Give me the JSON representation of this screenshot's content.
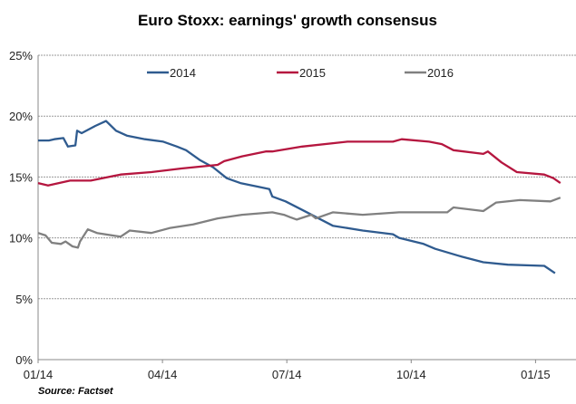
{
  "chart_data": {
    "type": "line",
    "title": "Euro Stoxx: earnings' growth consensus",
    "source": "Source: Factset",
    "xlabel": "",
    "ylabel": "",
    "x_unit": "months since 01/14",
    "xlim": [
      0,
      12.6
    ],
    "ylim": [
      0,
      25
    ],
    "yticks": [
      0,
      5,
      10,
      15,
      20,
      25
    ],
    "ytick_labels": [
      "0%",
      "5%",
      "10%",
      "15%",
      "20%",
      "25%"
    ],
    "xticks": [
      0,
      3,
      6,
      9,
      12
    ],
    "xtick_labels": [
      "01/14",
      "04/14",
      "07/14",
      "10/14",
      "01/15"
    ],
    "grid": "horizontal dashed",
    "legend_position": "top",
    "series": [
      {
        "name": "2014",
        "color": "#2f5b8f",
        "points": [
          [
            0,
            18.0
          ],
          [
            0.26,
            18.0
          ],
          [
            0.39,
            18.1
          ],
          [
            0.61,
            18.2
          ],
          [
            0.72,
            17.5
          ],
          [
            0.9,
            17.6
          ],
          [
            0.94,
            18.8
          ],
          [
            1.05,
            18.6
          ],
          [
            1.38,
            19.2
          ],
          [
            1.64,
            19.6
          ],
          [
            1.88,
            18.8
          ],
          [
            2.14,
            18.4
          ],
          [
            2.58,
            18.1
          ],
          [
            3.02,
            17.9
          ],
          [
            3.35,
            17.5
          ],
          [
            3.57,
            17.2
          ],
          [
            3.9,
            16.4
          ],
          [
            4.22,
            15.8
          ],
          [
            4.55,
            14.9
          ],
          [
            4.88,
            14.5
          ],
          [
            5.32,
            14.2
          ],
          [
            5.58,
            14.0
          ],
          [
            5.65,
            13.4
          ],
          [
            5.97,
            13.0
          ],
          [
            6.37,
            12.3
          ],
          [
            7.11,
            11.0
          ],
          [
            7.83,
            10.6
          ],
          [
            8.56,
            10.3
          ],
          [
            8.71,
            10.0
          ],
          [
            9.3,
            9.5
          ],
          [
            9.58,
            9.1
          ],
          [
            10.18,
            8.5
          ],
          [
            10.74,
            8.0
          ],
          [
            11.33,
            7.8
          ],
          [
            12.21,
            7.7
          ],
          [
            12.47,
            7.1
          ]
        ]
      },
      {
        "name": "2015",
        "color": "#b5163f",
        "points": [
          [
            0,
            14.5
          ],
          [
            0.24,
            14.3
          ],
          [
            0.77,
            14.7
          ],
          [
            1.27,
            14.7
          ],
          [
            1.99,
            15.2
          ],
          [
            2.73,
            15.4
          ],
          [
            3.46,
            15.7
          ],
          [
            4.33,
            16.0
          ],
          [
            4.49,
            16.3
          ],
          [
            4.92,
            16.7
          ],
          [
            5.49,
            17.1
          ],
          [
            5.65,
            17.1
          ],
          [
            6.37,
            17.5
          ],
          [
            7.46,
            17.9
          ],
          [
            8.56,
            17.9
          ],
          [
            8.77,
            18.1
          ],
          [
            9.43,
            17.9
          ],
          [
            9.74,
            17.7
          ],
          [
            10.02,
            17.2
          ],
          [
            10.74,
            16.9
          ],
          [
            10.85,
            17.1
          ],
          [
            11.18,
            16.2
          ],
          [
            11.55,
            15.4
          ],
          [
            12.21,
            15.2
          ],
          [
            12.43,
            14.9
          ],
          [
            12.6,
            14.5
          ]
        ]
      },
      {
        "name": "2016",
        "color": "#808080",
        "points": [
          [
            0,
            10.4
          ],
          [
            0.18,
            10.2
          ],
          [
            0.33,
            9.6
          ],
          [
            0.55,
            9.5
          ],
          [
            0.66,
            9.7
          ],
          [
            0.83,
            9.3
          ],
          [
            0.96,
            9.2
          ],
          [
            1.01,
            9.7
          ],
          [
            1.2,
            10.7
          ],
          [
            1.42,
            10.4
          ],
          [
            1.99,
            10.1
          ],
          [
            2.21,
            10.6
          ],
          [
            2.73,
            10.4
          ],
          [
            3.17,
            10.8
          ],
          [
            3.74,
            11.1
          ],
          [
            4.33,
            11.6
          ],
          [
            4.92,
            11.9
          ],
          [
            5.65,
            12.1
          ],
          [
            5.93,
            11.9
          ],
          [
            6.08,
            11.7
          ],
          [
            6.24,
            11.5
          ],
          [
            6.59,
            11.9
          ],
          [
            6.7,
            11.6
          ],
          [
            7.11,
            12.1
          ],
          [
            7.83,
            11.9
          ],
          [
            8.71,
            12.1
          ],
          [
            9.87,
            12.1
          ],
          [
            10.02,
            12.5
          ],
          [
            10.74,
            12.2
          ],
          [
            11.05,
            12.9
          ],
          [
            11.62,
            13.1
          ],
          [
            12.36,
            13.0
          ],
          [
            12.6,
            13.3
          ]
        ]
      }
    ]
  }
}
